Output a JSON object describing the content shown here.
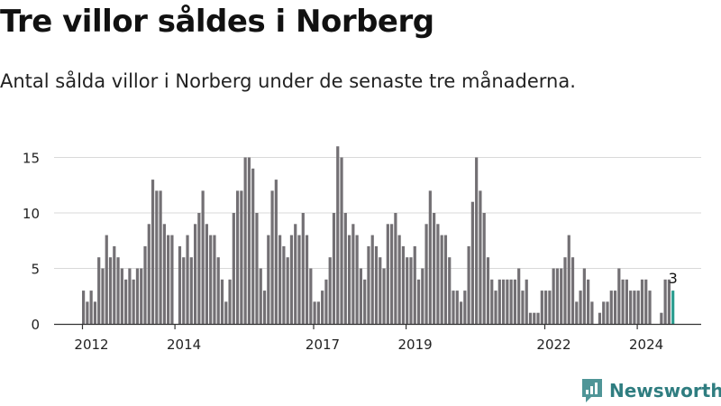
{
  "title": "Tre villor såldes i Norberg",
  "subtitle": "Antal sålda villor i Norberg under de senaste tre månaderna.",
  "brand": {
    "name": "Newsworthy"
  },
  "colors": {
    "bar": "#737074",
    "highlight": "#2a9d8f",
    "grid": "#d9d9d9",
    "axis": "#333333",
    "brand": "#2f7d80"
  },
  "chart_data": {
    "type": "bar",
    "title": "Tre villor såldes i Norberg",
    "subtitle": "Antal sålda villor i Norberg under de senaste tre månaderna.",
    "xlabel": "",
    "ylabel": "",
    "ylim": [
      0,
      16
    ],
    "yticks": [
      "0",
      "5",
      "10",
      "15"
    ],
    "xticks": [
      "2012",
      "2014",
      "2017",
      "2019",
      "2022",
      "2024"
    ],
    "grid": true,
    "highlight_label": "3",
    "values": [
      3,
      2,
      3,
      2,
      6,
      5,
      8,
      6,
      7,
      6,
      5,
      4,
      5,
      4,
      5,
      5,
      7,
      9,
      13,
      12,
      12,
      9,
      8,
      8,
      0,
      7,
      6,
      8,
      6,
      9,
      10,
      12,
      9,
      8,
      8,
      6,
      4,
      2,
      4,
      10,
      12,
      12,
      15,
      15,
      14,
      10,
      5,
      3,
      8,
      12,
      13,
      8,
      7,
      6,
      8,
      9,
      8,
      10,
      8,
      5,
      2,
      2,
      3,
      4,
      6,
      10,
      16,
      15,
      10,
      8,
      9,
      8,
      5,
      4,
      7,
      8,
      7,
      6,
      5,
      9,
      9,
      10,
      8,
      7,
      6,
      6,
      7,
      4,
      5,
      9,
      12,
      10,
      9,
      8,
      8,
      6,
      3,
      3,
      2,
      3,
      7,
      11,
      15,
      12,
      10,
      6,
      4,
      3,
      4,
      4,
      4,
      4,
      4,
      5,
      3,
      4,
      1,
      1,
      1,
      3,
      3,
      3,
      5,
      5,
      5,
      6,
      8,
      6,
      2,
      3,
      5,
      4,
      2,
      0,
      1,
      2,
      2,
      3,
      3,
      5,
      4,
      4,
      3,
      3,
      3,
      4,
      4,
      3,
      0,
      0,
      1,
      4,
      4,
      3
    ]
  }
}
